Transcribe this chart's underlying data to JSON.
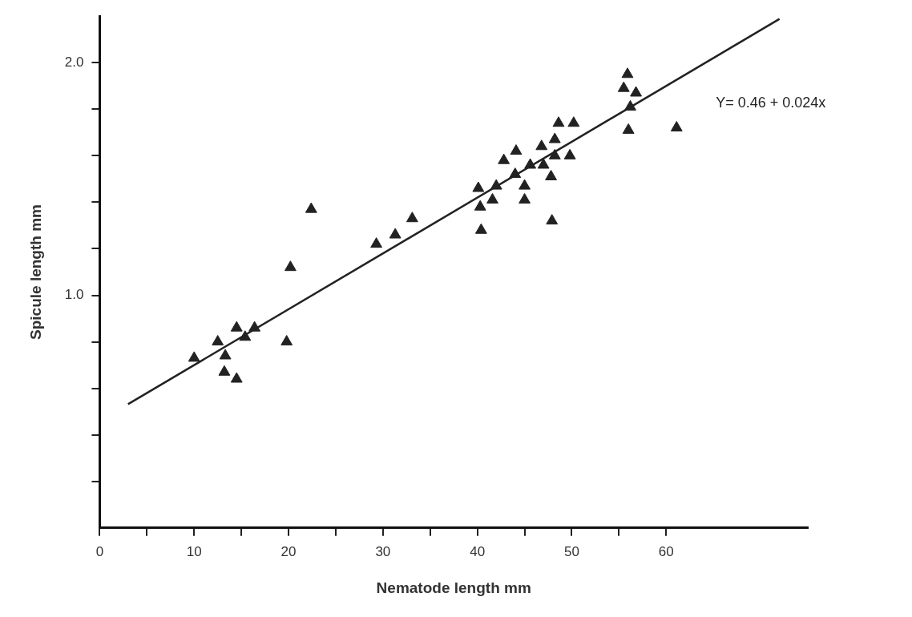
{
  "chart_data": {
    "type": "scatter",
    "xlabel": "Nematode length mm",
    "ylabel": "Spicule length mm",
    "xlim": [
      0,
      75
    ],
    "ylim": [
      0,
      2.2
    ],
    "xticks": [
      {
        "value": 0,
        "label": "0"
      },
      {
        "value": 5,
        "label": null
      },
      10,
      {
        "value": 15,
        "label": null
      },
      20,
      {
        "value": 25,
        "label": null
      },
      30,
      {
        "value": 35,
        "label": null
      },
      40,
      {
        "value": 45,
        "label": null
      },
      50,
      {
        "value": 55,
        "label": null
      },
      60
    ],
    "yticks": [
      {
        "value": 0.2,
        "label": null
      },
      {
        "value": 0.4,
        "label": null
      },
      {
        "value": 0.6,
        "label": null
      },
      {
        "value": 0.8,
        "label": null
      },
      {
        "value": 1,
        "label": "1.0"
      },
      {
        "value": 1.2,
        "label": null
      },
      {
        "value": 1.4,
        "label": null
      },
      {
        "value": 1.6,
        "label": null
      },
      {
        "value": 1.8,
        "label": null
      },
      {
        "value": 2,
        "label": "2.0"
      }
    ],
    "grid": false,
    "legend": false,
    "marker": "triangle",
    "series": [
      {
        "color": "#222222",
        "x": [
          10.0,
          12.5,
          13.3,
          13.2,
          14.5,
          14.5,
          16.4,
          15.4,
          19.8,
          20.2,
          22.4,
          29.3,
          31.3,
          33.1,
          55.9,
          55.5,
          56.8,
          56.2,
          56.0,
          61.1,
          48.6,
          50.2,
          48.2,
          46.8,
          44.1,
          42.8,
          49.8,
          48.2,
          45.6,
          47.0,
          44.0,
          47.8,
          40.1,
          42.0,
          41.6,
          45.0,
          45.0,
          40.3,
          40.4,
          47.9
        ],
        "values": [
          0.73,
          0.8,
          0.74,
          0.67,
          0.64,
          0.86,
          0.86,
          0.82,
          0.8,
          1.12,
          1.37,
          1.22,
          1.26,
          1.33,
          1.95,
          1.89,
          1.87,
          1.81,
          1.71,
          1.72,
          1.74,
          1.74,
          1.67,
          1.64,
          1.62,
          1.58,
          1.6,
          1.6,
          1.56,
          1.56,
          1.52,
          1.51,
          1.46,
          1.47,
          1.41,
          1.47,
          1.41,
          1.38,
          1.28,
          1.32
        ]
      },
      {
        "type": "line",
        "color": "#222222",
        "line_style": "solid",
        "marker": "none",
        "x": [
          3,
          72
        ],
        "values": [
          0.532,
          2.188
        ]
      }
    ],
    "annotations": [
      "Y= 0.46 + 0.024x"
    ]
  }
}
